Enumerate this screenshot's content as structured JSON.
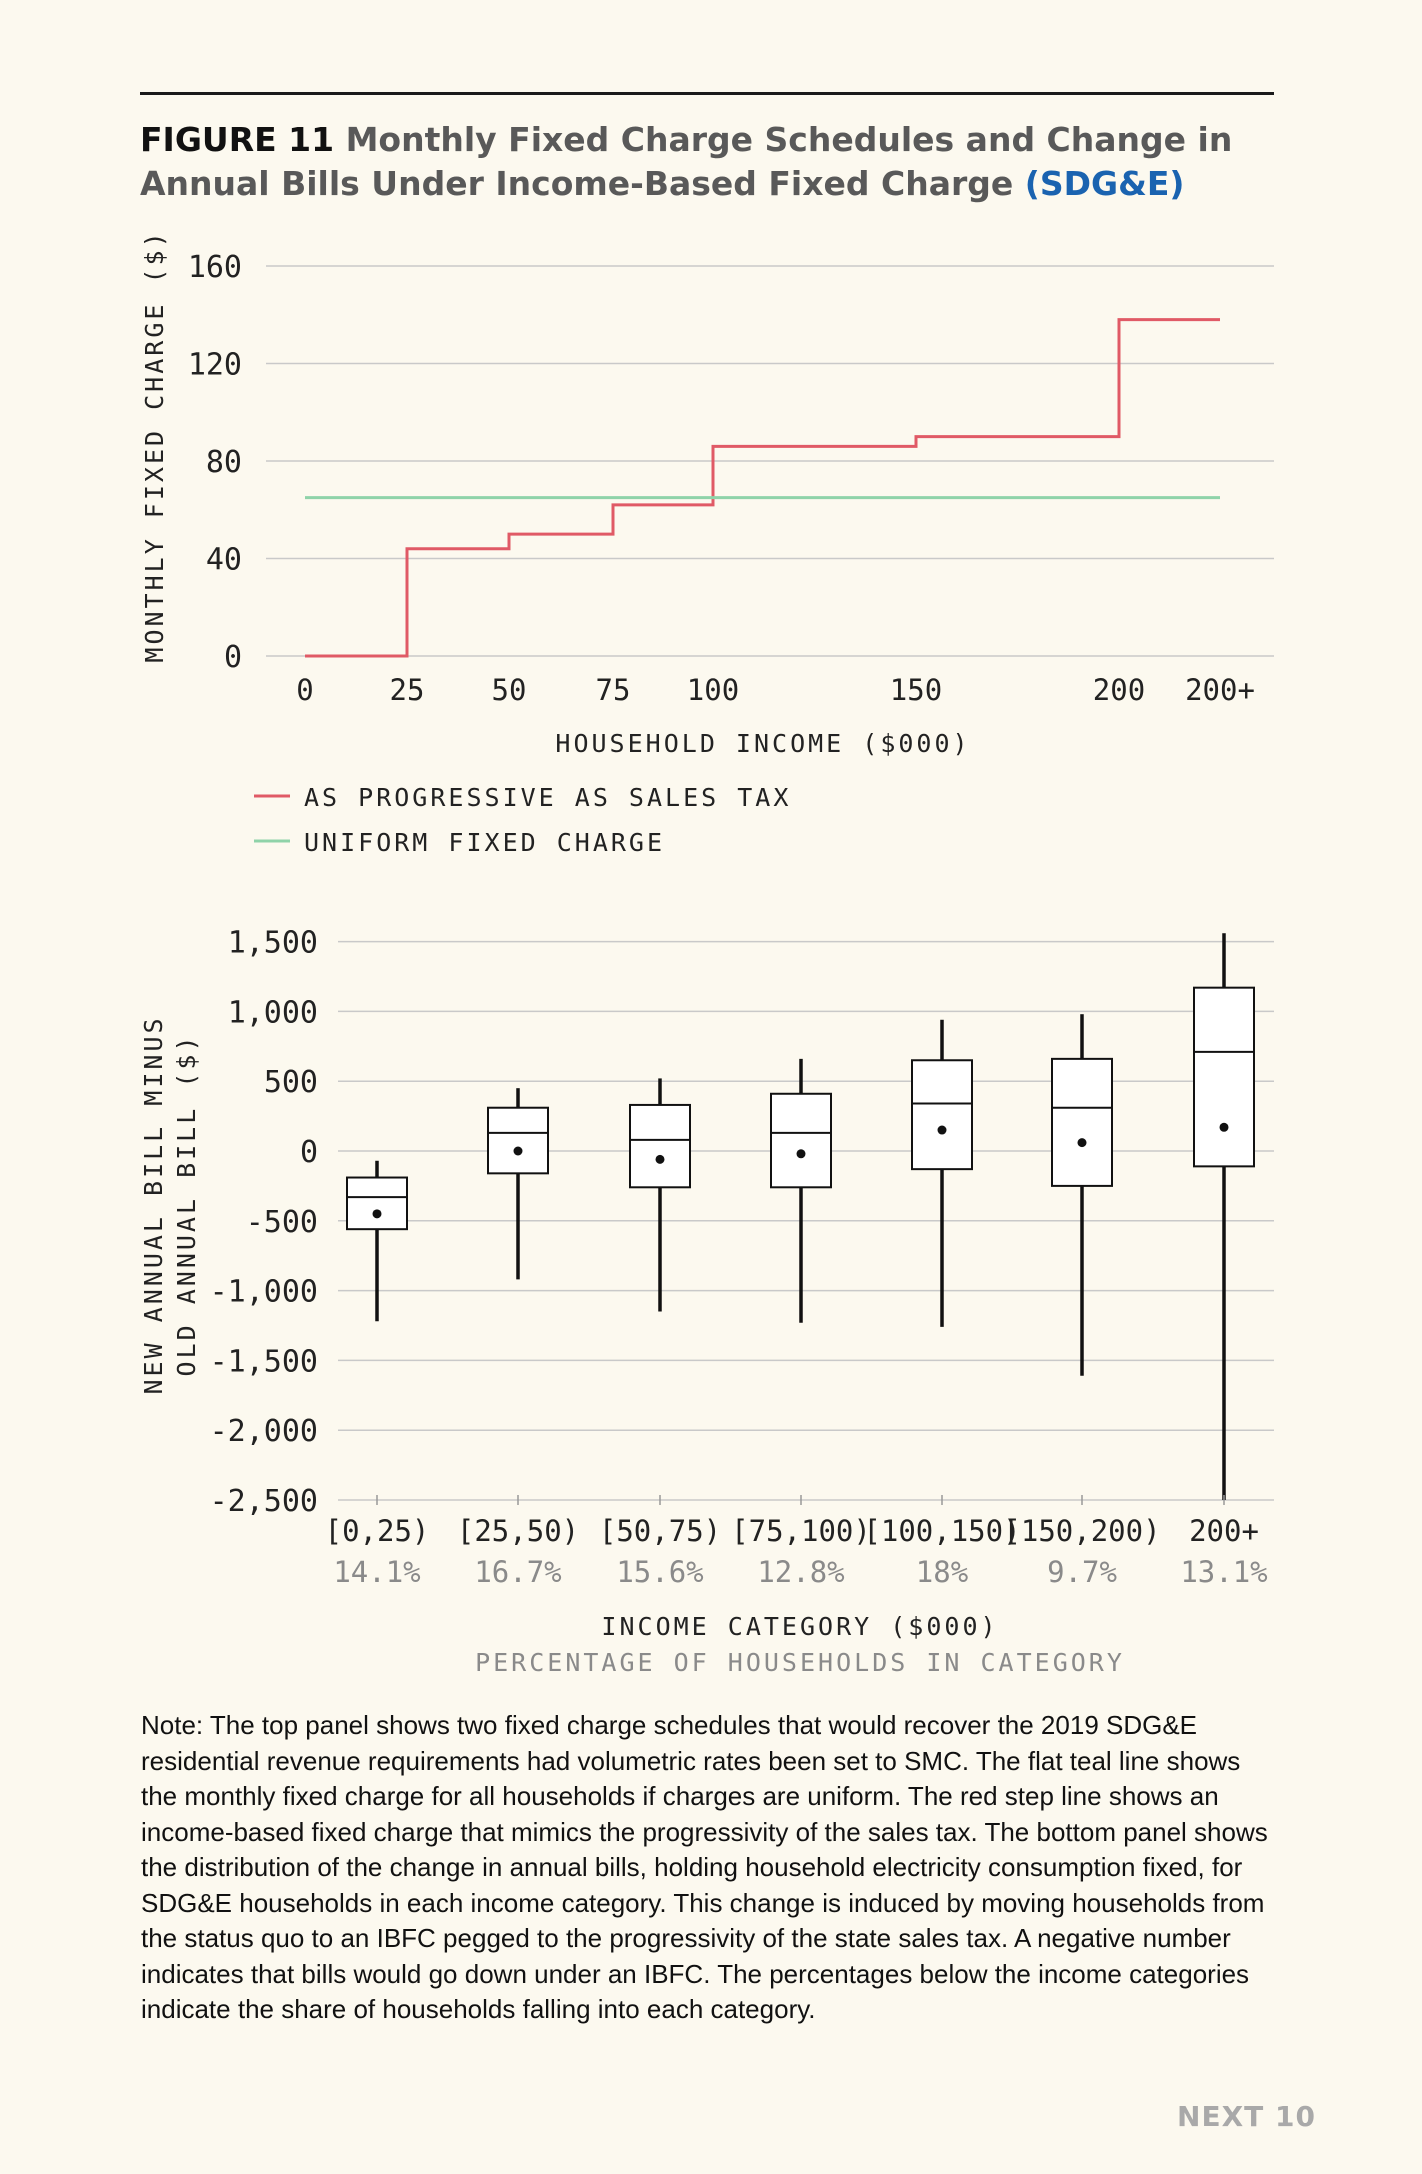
{
  "figure": {
    "label": "FIGURE 11",
    "title": "Monthly Fixed Charge Schedules and Change in Annual Bills Under Income-Based Fixed Charge",
    "tag": "(SDG&E)"
  },
  "colors": {
    "progressive": "#e05a66",
    "uniform": "#8fd3a9",
    "grid": "#c9c9c9",
    "tag": "#1a63b0"
  },
  "chart_data": [
    {
      "type": "line",
      "ylabel": "MONTHLY FIXED CHARGE ($)",
      "xlabel": "HOUSEHOLD INCOME ($000)",
      "ylim": [
        0,
        160
      ],
      "yticks": [
        0,
        40,
        80,
        120,
        160
      ],
      "xticks": [
        "0",
        "25",
        "50",
        "75",
        "100",
        "150",
        "200",
        "200+"
      ],
      "grid": true,
      "legend": "bottom-left",
      "series": [
        {
          "name": "AS PROGRESSIVE AS SALES TAX",
          "step": true,
          "x": [
            "0",
            "25",
            "50",
            "75",
            "100",
            "150",
            "200",
            "200+"
          ],
          "y": [
            0,
            44,
            50,
            62,
            86,
            90,
            138,
            138
          ]
        },
        {
          "name": "UNIFORM FIXED CHARGE",
          "x": [
            "0",
            "200+"
          ],
          "y": [
            65,
            65
          ]
        }
      ]
    },
    {
      "type": "box",
      "ylabel_line1": "NEW ANNUAL BILL MINUS",
      "ylabel_line2": "OLD ANNUAL BILL ($)",
      "xlabel": "INCOME CATEGORY ($000)",
      "xlabel2": "PERCENTAGE OF HOUSEHOLDS IN CATEGORY",
      "ylim": [
        -2500,
        1500
      ],
      "yticks": [
        1500,
        1000,
        500,
        0,
        -500,
        -1000,
        -1500,
        -2000,
        -2500
      ],
      "ytick_labels": [
        "1,500",
        "1,000",
        "500",
        "0",
        "-500",
        "-1,000",
        "-1,500",
        "-2,000",
        "-2,500"
      ],
      "grid": true,
      "categories": [
        "[0,25)",
        "[25,50)",
        "[50,75)",
        "[75,100)",
        "[100,150)",
        "[150,200)",
        "200+"
      ],
      "percentages": [
        "14.1%",
        "16.7%",
        "15.6%",
        "12.8%",
        "18%",
        "9.7%",
        "13.1%"
      ],
      "boxes": [
        {
          "min": -1220,
          "q1": -560,
          "median": -330,
          "q3": -190,
          "max": -70,
          "mean": -450
        },
        {
          "min": -920,
          "q1": -160,
          "median": 130,
          "q3": 310,
          "max": 450,
          "mean": 0
        },
        {
          "min": -1150,
          "q1": -260,
          "median": 80,
          "q3": 330,
          "max": 520,
          "mean": -60
        },
        {
          "min": -1230,
          "q1": -260,
          "median": 130,
          "q3": 410,
          "max": 660,
          "mean": -20
        },
        {
          "min": -1260,
          "q1": -130,
          "median": 340,
          "q3": 650,
          "max": 940,
          "mean": 150
        },
        {
          "min": -1610,
          "q1": -250,
          "median": 310,
          "q3": 660,
          "max": 980,
          "mean": 60
        },
        {
          "min": -2500,
          "q1": -110,
          "median": 710,
          "q3": 1170,
          "max": 1560,
          "mean": 170
        }
      ]
    }
  ],
  "note": "Note: The top panel shows two fixed charge schedules that would recover the 2019 SDG&E residential revenue requirements had volumetric rates been set to SMC. The flat teal line shows the monthly fixed charge for all households if charges are uniform. The red step line shows an income-based fixed charge that mimics the progressivity of the sales tax. The bottom panel shows the distribution of the change in annual bills, holding household electricity consumption fixed, for SDG&E households in each income category. This change is induced by moving households from the status quo to an IBFC pegged to the progressivity of the state sales tax. A negative number indicates that bills would go down under an IBFC. The percentages below the income categories indicate the share of households falling into each category.",
  "brand": "NEXT 10"
}
